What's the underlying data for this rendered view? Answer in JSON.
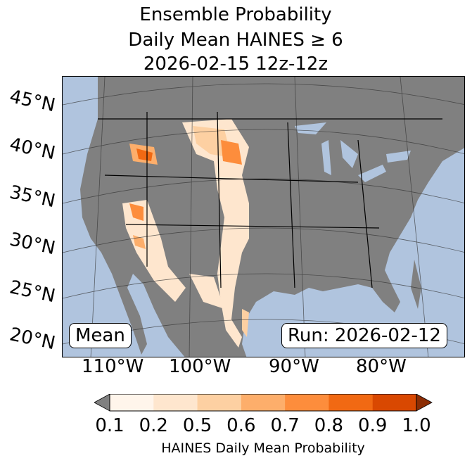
{
  "title": {
    "line1": "Ensemble Probability",
    "line2": "Daily Mean HAINES ≥ 6",
    "line3": "2026-02-15 12z-12z"
  },
  "lat_labels": [
    "45°N",
    "40°N",
    "35°N",
    "30°N",
    "25°N",
    "20°N"
  ],
  "lon_labels": [
    "110°W",
    "100°W",
    "90°W",
    "80°W"
  ],
  "badges": {
    "left": "Mean",
    "right": "Run: 2026-02-12"
  },
  "colorbar": {
    "label": "HAINES Daily Mean Probability",
    "ticks": [
      "0.1",
      "0.2",
      "0.5",
      "0.6",
      "0.7",
      "0.8",
      "0.9",
      "1.0"
    ],
    "colors": [
      "#fff5eb",
      "#fee6ce",
      "#fdd0a2",
      "#fdae6b",
      "#fd8d3c",
      "#f16913",
      "#d94801"
    ],
    "under_color": "#808080",
    "over_color": "#8c2d04"
  },
  "colors": {
    "ocean": "#b0c4de",
    "land": "#808080"
  }
}
